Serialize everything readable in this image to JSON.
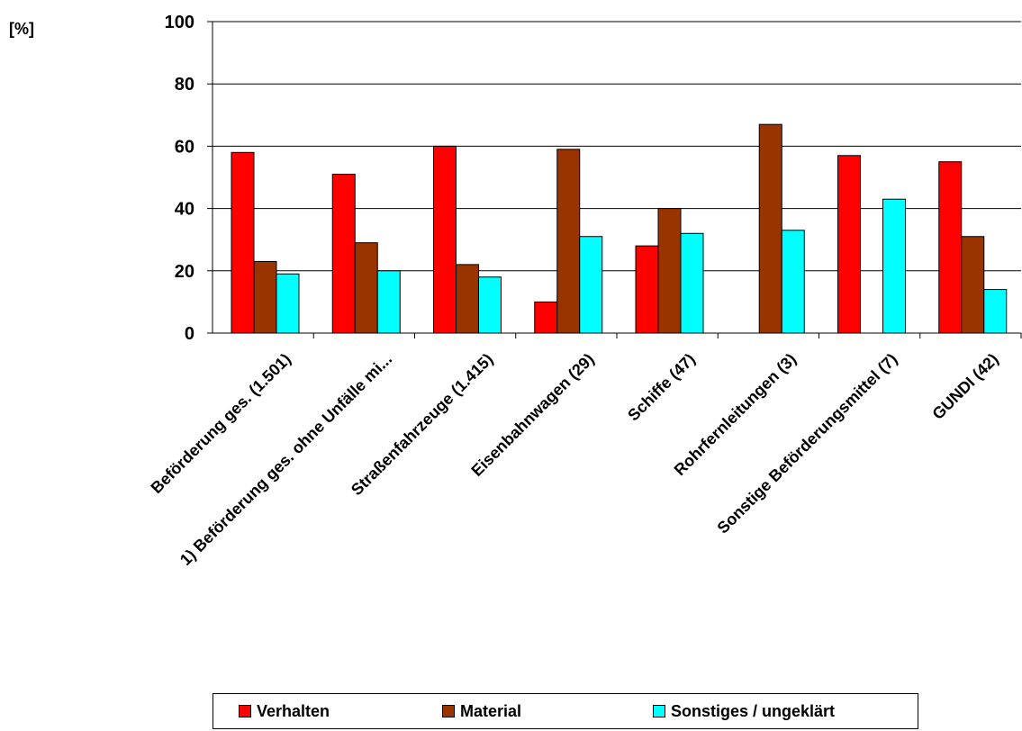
{
  "chart_data": {
    "type": "bar",
    "unit_label": "[%]",
    "title": "",
    "xlabel": "",
    "ylabel": "[%]",
    "ylim": [
      0,
      100
    ],
    "yticks": [
      0,
      20,
      40,
      60,
      80,
      100
    ],
    "grid": true,
    "legend_position": "bottom",
    "categories": [
      "Beförderung ges. (1.501)",
      "1) Beförderung ges. ohne Unfälle mi...",
      "Straßenfahrzeuge (1.415)",
      "Eisenbahnwagen (29)",
      "Schiffe (47)",
      "Rohrfernleitungen (3)",
      "Sonstige Beförderungsmittel (7)",
      "GUNDI (42)"
    ],
    "series": [
      {
        "name": "Verhalten",
        "color": "#ff0000",
        "values": [
          58,
          51,
          60,
          10,
          28,
          0,
          57,
          55
        ]
      },
      {
        "name": "Material",
        "color": "#993300",
        "values": [
          23,
          29,
          22,
          59,
          40,
          67,
          0,
          31
        ]
      },
      {
        "name": "Sonstiges / ungeklärt",
        "color": "#00ffff",
        "values": [
          19,
          20,
          18,
          31,
          32,
          33,
          43,
          14
        ]
      }
    ]
  }
}
